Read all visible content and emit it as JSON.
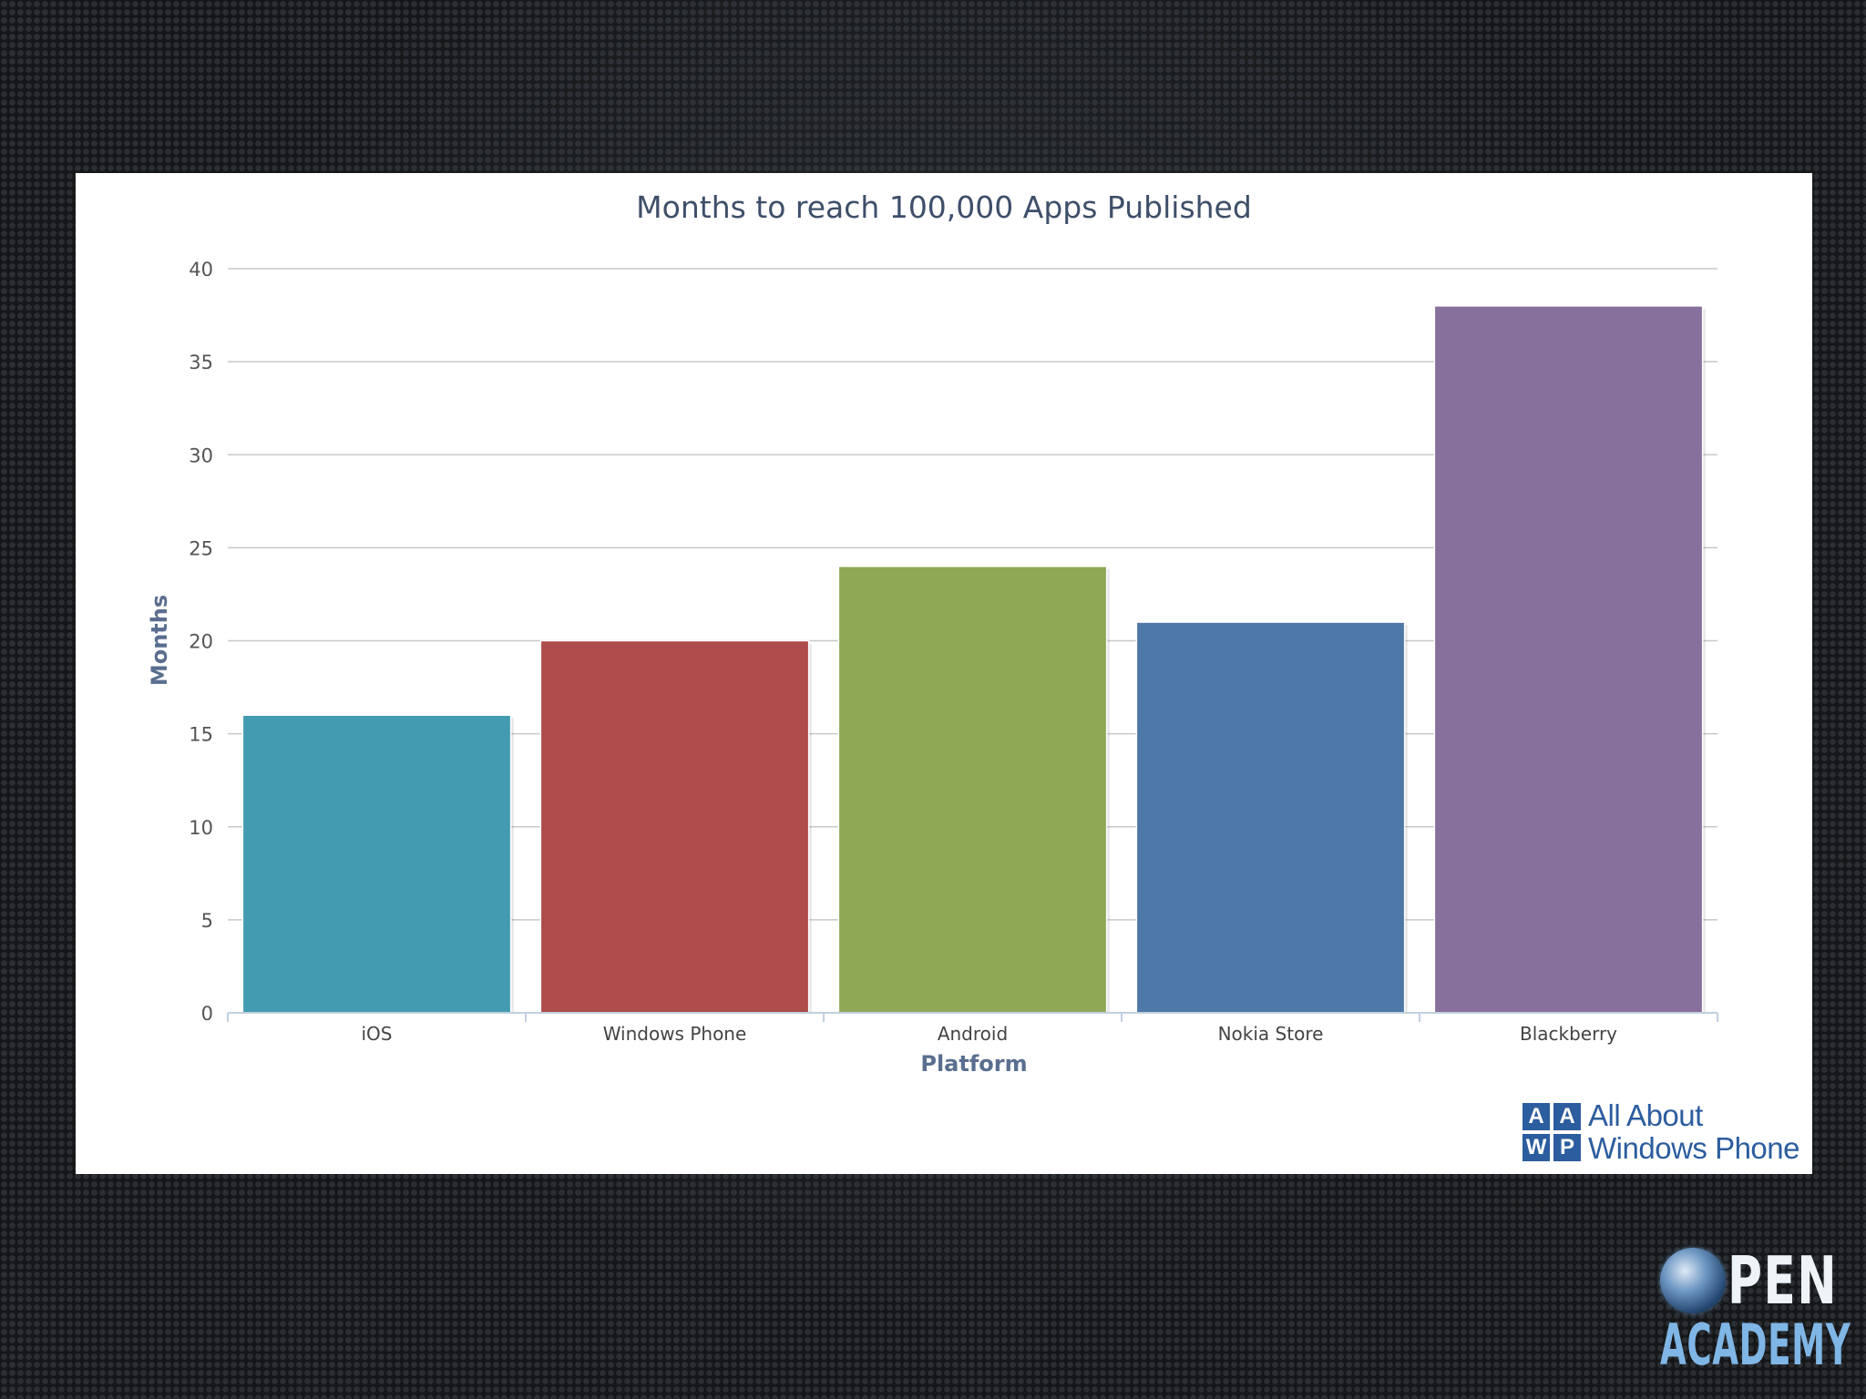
{
  "chart_data": {
    "type": "bar",
    "title": "Months to reach 100,000 Apps Published",
    "xlabel": "Platform",
    "ylabel": "Months",
    "categories": [
      "iOS",
      "Windows Phone",
      "Android",
      "Nokia Store",
      "Blackberry"
    ],
    "values": [
      16,
      20,
      24,
      21,
      38
    ],
    "colors": [
      "#439bb2",
      "#ad4c4b",
      "#8ea856",
      "#4e78a8",
      "#88709c"
    ],
    "ylim": [
      0,
      40
    ],
    "yticks": [
      0,
      5,
      10,
      15,
      20,
      25,
      30,
      35,
      40
    ],
    "grid": true,
    "legend": "none"
  },
  "source_logo": {
    "blocks": [
      "A",
      "A",
      "W",
      "P"
    ],
    "line1": "All About",
    "line2": "Windows Phone"
  },
  "branding": {
    "top": "PEN",
    "bottom": "ACADEMY"
  }
}
